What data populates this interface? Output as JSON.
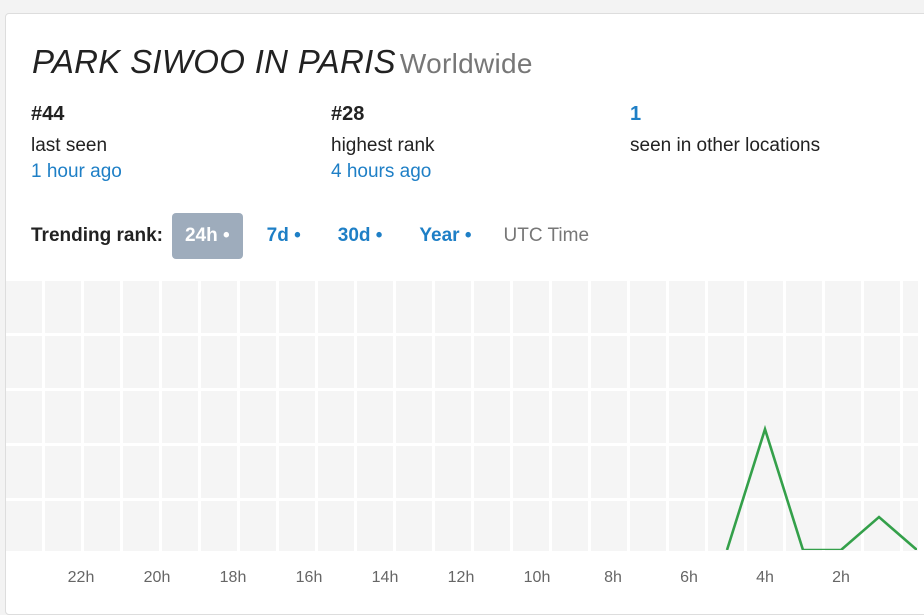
{
  "header": {
    "title": "PARK SIWOO IN PARIS",
    "subtitle": "Worldwide"
  },
  "stats": [
    {
      "value": "#44",
      "label": "last seen",
      "detail": "1 hour ago"
    },
    {
      "value": "#28",
      "label": "highest rank",
      "detail": "4 hours ago"
    },
    {
      "value": "1",
      "label": "seen in other locations"
    }
  ],
  "tabs": {
    "label": "Trending rank:",
    "options": [
      "24h •",
      "7d •",
      "30d •",
      "Year •"
    ],
    "active": 0,
    "note": "UTC Time"
  },
  "chart_data": {
    "type": "line",
    "x": [
      5,
      4,
      3,
      2,
      1,
      0
    ],
    "values": [
      50,
      28,
      50,
      50,
      44,
      50
    ],
    "color": "#34a04a",
    "xlim": [
      24,
      0
    ],
    "ylim": [
      50,
      1
    ],
    "xticks": [
      {
        "value": 22,
        "label": "22h"
      },
      {
        "value": 20,
        "label": "20h"
      },
      {
        "value": 18,
        "label": "18h"
      },
      {
        "value": 16,
        "label": "16h"
      },
      {
        "value": 14,
        "label": "14h"
      },
      {
        "value": 12,
        "label": "12h"
      },
      {
        "value": 10,
        "label": "10h"
      },
      {
        "value": 8,
        "label": "8h"
      },
      {
        "value": 6,
        "label": "6h"
      },
      {
        "value": 4,
        "label": "4h"
      },
      {
        "value": 2,
        "label": "2h"
      }
    ]
  }
}
